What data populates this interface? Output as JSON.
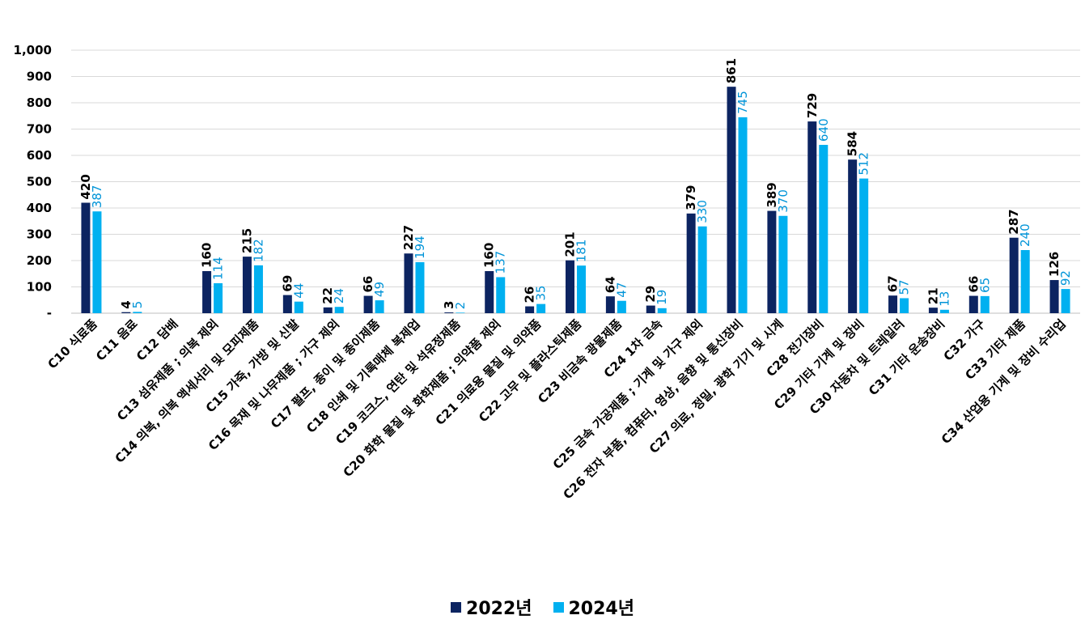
{
  "chart_data": {
    "type": "bar",
    "title": "",
    "xlabel": "",
    "ylabel": "",
    "ylim": [
      0,
      1000
    ],
    "yticks": [
      0,
      100,
      200,
      300,
      400,
      500,
      600,
      700,
      800,
      900,
      1000
    ],
    "ytick_labels": [
      "-",
      "100",
      "200",
      "300",
      "400",
      "500",
      "600",
      "700",
      "800",
      "900",
      "1,000"
    ],
    "grid": true,
    "legend_position": "bottom",
    "categories": [
      "C10 식료품",
      "C11 음료",
      "C12 담배",
      "C13 섬유제품 ; 의복 제외",
      "C14 의복, 의복 액세서리 및 모피제품",
      "C15 가죽, 가방 및 신발",
      "C16 목재 및 나무제품 ; 가구 제외",
      "C17 펄프, 종이 및 종이제품",
      "C18 인쇄 및 기록매체 복제업",
      "C19 코크스, 연탄 및 석유정제품",
      "C20 화학 물질 및 화학제품 ; 의약품 제외",
      "C21 의료용 물질 및 의약품",
      "C22 고무 및 플라스틱제품",
      "C23 비금속 광물제품",
      "C24 1차 금속",
      "C25 금속 가공제품 ; 기계 및 가구 제외",
      "C26 전자 부품, 컴퓨터, 영상, 음향 및 통신장비",
      "C27 의료, 정밀, 광학 기기 및 시계",
      "C28 전기장비",
      "C29 기타 기계 및 장비",
      "C30 자동차 및 트레일러",
      "C31 기타 운송장비",
      "C32 가구",
      "C33 기타 제품",
      "C34 산업용 기계 및 장비 수리업"
    ],
    "series": [
      {
        "name": "2022년",
        "color": "#0c2461",
        "values": [
          420,
          4,
          null,
          160,
          215,
          69,
          22,
          66,
          227,
          3,
          160,
          26,
          201,
          64,
          29,
          379,
          861,
          389,
          729,
          584,
          67,
          21,
          66,
          287,
          126
        ],
        "labels": [
          "420",
          "4",
          "",
          "160",
          "215",
          "69",
          "22",
          "66",
          "227",
          "3",
          "160",
          "26",
          "201",
          "64",
          "29",
          "379",
          "861",
          "389",
          "729",
          "584",
          "67",
          "21",
          "66",
          "287",
          "126"
        ]
      },
      {
        "name": "2024년",
        "color": "#00b0f0",
        "values": [
          387,
          5,
          null,
          114,
          182,
          44,
          24,
          49,
          194,
          2,
          137,
          35,
          181,
          47,
          19,
          330,
          745,
          370,
          640,
          512,
          57,
          13,
          65,
          240,
          92
        ],
        "labels": [
          "387",
          "5",
          "",
          "114",
          "182",
          "44",
          "24",
          "49",
          "194",
          "2",
          "137",
          "35",
          "181",
          "47",
          "19",
          "330",
          "745",
          "370",
          "640",
          "512",
          "57",
          "13",
          "65",
          "240",
          "92"
        ]
      }
    ]
  }
}
